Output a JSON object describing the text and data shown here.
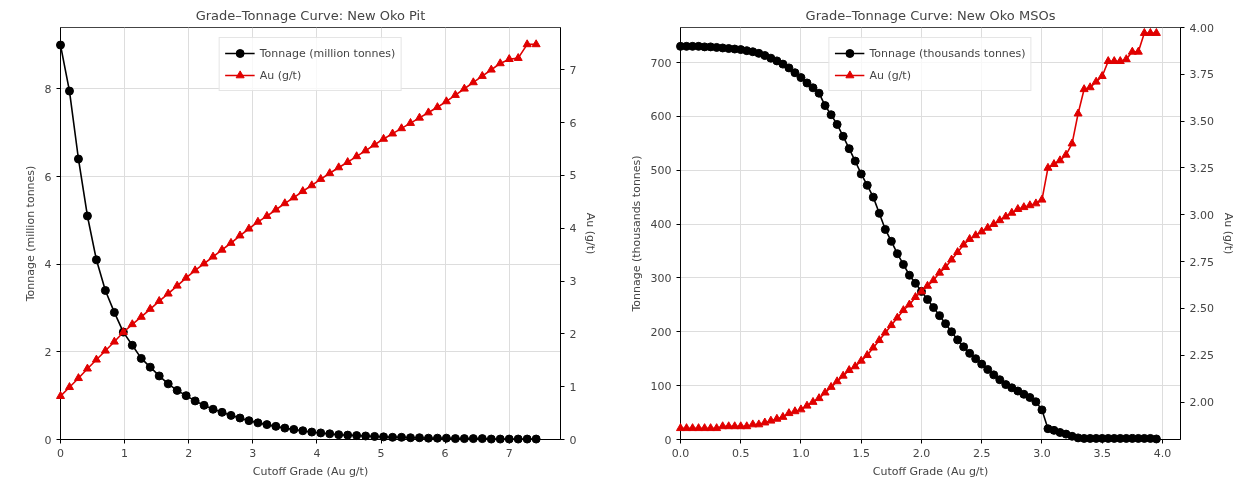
{
  "chart_data": [
    {
      "type": "line",
      "title": "Grade–Tonnage Curve: New Oko Pit",
      "xlabel": "Cutoff Grade (Au g/t)",
      "ylabel": "Tonnage (million tonnes)",
      "y2label": "Au (g/t)",
      "x": [
        0,
        0.14,
        0.28,
        0.42,
        0.56,
        0.7,
        0.84,
        0.98,
        1.12,
        1.26,
        1.4,
        1.54,
        1.68,
        1.82,
        1.96,
        2.1,
        2.24,
        2.38,
        2.52,
        2.66,
        2.8,
        2.94,
        3.08,
        3.22,
        3.36,
        3.5,
        3.64,
        3.78,
        3.92,
        4.06,
        4.2,
        4.34,
        4.48,
        4.62,
        4.76,
        4.9,
        5.04,
        5.18,
        5.32,
        5.46,
        5.6,
        5.74,
        5.88,
        6.02,
        6.16,
        6.3,
        6.44,
        6.58,
        6.72,
        6.86,
        7.0,
        7.14,
        7.28,
        7.42
      ],
      "series": [
        {
          "name": "Tonnage (million tonnes)",
          "color": "#000000",
          "marker": "circle",
          "values": [
            9.0,
            7.95,
            6.4,
            5.1,
            4.1,
            3.4,
            2.9,
            2.45,
            2.15,
            1.85,
            1.65,
            1.45,
            1.27,
            1.12,
            1.0,
            0.88,
            0.78,
            0.69,
            0.62,
            0.55,
            0.49,
            0.43,
            0.38,
            0.34,
            0.3,
            0.26,
            0.23,
            0.2,
            0.17,
            0.15,
            0.13,
            0.11,
            0.1,
            0.09,
            0.08,
            0.07,
            0.06,
            0.05,
            0.05,
            0.04,
            0.04,
            0.03,
            0.03,
            0.03,
            0.02,
            0.02,
            0.02,
            0.02,
            0.01,
            0.01,
            0.01,
            0.01,
            0.01,
            0.01
          ]
        },
        {
          "name": "Au (g/t)",
          "color": "#e00000",
          "marker": "triangle",
          "axis": "y2",
          "values": [
            0.82,
            0.99,
            1.16,
            1.34,
            1.51,
            1.68,
            1.85,
            2.03,
            2.18,
            2.32,
            2.47,
            2.62,
            2.76,
            2.91,
            3.06,
            3.2,
            3.33,
            3.46,
            3.59,
            3.72,
            3.86,
            3.99,
            4.12,
            4.23,
            4.35,
            4.47,
            4.58,
            4.7,
            4.81,
            4.93,
            5.04,
            5.15,
            5.25,
            5.36,
            5.47,
            5.58,
            5.69,
            5.79,
            5.89,
            5.99,
            6.09,
            6.19,
            6.29,
            6.4,
            6.52,
            6.64,
            6.76,
            6.88,
            7.0,
            7.12,
            7.2,
            7.22,
            7.48,
            7.48
          ]
        }
      ],
      "xlim": [
        0,
        7.8
      ],
      "xticks": [
        0,
        1,
        2,
        3,
        4,
        5,
        6,
        7
      ],
      "ylim": [
        0,
        9.4
      ],
      "yticks": [
        0,
        2,
        4,
        6,
        8
      ],
      "y2lim": [
        0,
        7.8
      ],
      "y2ticks": [
        0,
        1,
        2,
        3,
        4,
        5,
        6,
        7
      ],
      "grid": true,
      "legend": "top",
      "line_style": "solid"
    },
    {
      "type": "line",
      "title": "Grade–Tonnage Curve: New Oko MSOs",
      "xlabel": "Cutoff Grade (Au g/t)",
      "ylabel": "Tonnage (thousands tonnes)",
      "y2label": "Au (g/t)",
      "x": [
        0,
        0.05,
        0.1,
        0.15,
        0.2,
        0.25,
        0.3,
        0.35,
        0.4,
        0.45,
        0.5,
        0.55,
        0.6,
        0.65,
        0.7,
        0.75,
        0.8,
        0.85,
        0.9,
        0.95,
        1.0,
        1.05,
        1.1,
        1.15,
        1.2,
        1.25,
        1.3,
        1.35,
        1.4,
        1.45,
        1.5,
        1.55,
        1.6,
        1.65,
        1.7,
        1.75,
        1.8,
        1.85,
        1.9,
        1.95,
        2.0,
        2.05,
        2.1,
        2.15,
        2.2,
        2.25,
        2.3,
        2.35,
        2.4,
        2.45,
        2.5,
        2.55,
        2.6,
        2.65,
        2.7,
        2.75,
        2.8,
        2.85,
        2.9,
        2.95,
        3.0,
        3.05,
        3.1,
        3.15,
        3.2,
        3.25,
        3.3,
        3.35,
        3.4,
        3.45,
        3.5,
        3.55,
        3.6,
        3.65,
        3.7,
        3.75,
        3.8,
        3.85,
        3.9,
        3.95
      ],
      "series": [
        {
          "name": "Tonnage (thousands tonnes)",
          "color": "#000000",
          "marker": "circle",
          "values": [
            730,
            730,
            730,
            730,
            729,
            729,
            728,
            727,
            726,
            725,
            724,
            722,
            720,
            717,
            713,
            708,
            703,
            697,
            690,
            681,
            672,
            662,
            653,
            643,
            620,
            603,
            585,
            563,
            540,
            517,
            493,
            472,
            450,
            420,
            390,
            368,
            345,
            325,
            305,
            290,
            275,
            260,
            245,
            230,
            215,
            200,
            185,
            172,
            160,
            150,
            140,
            130,
            120,
            111,
            102,
            96,
            90,
            84,
            78,
            70,
            55,
            20,
            17,
            13,
            10,
            6,
            3,
            2,
            2,
            2,
            2,
            2,
            2,
            2,
            2,
            2,
            2,
            2,
            2,
            1
          ]
        },
        {
          "name": "Au (g/t)",
          "color": "#e00000",
          "marker": "triangle",
          "axis": "y2",
          "values": [
            1.86,
            1.86,
            1.86,
            1.86,
            1.86,
            1.86,
            1.86,
            1.87,
            1.87,
            1.87,
            1.87,
            1.87,
            1.88,
            1.88,
            1.89,
            1.9,
            1.91,
            1.92,
            1.94,
            1.95,
            1.96,
            1.98,
            2.0,
            2.02,
            2.05,
            2.08,
            2.11,
            2.14,
            2.17,
            2.19,
            2.22,
            2.25,
            2.29,
            2.33,
            2.37,
            2.41,
            2.45,
            2.49,
            2.52,
            2.56,
            2.59,
            2.62,
            2.65,
            2.69,
            2.72,
            2.76,
            2.8,
            2.84,
            2.87,
            2.89,
            2.91,
            2.93,
            2.95,
            2.97,
            2.99,
            3.01,
            3.03,
            3.04,
            3.05,
            3.06,
            3.08,
            3.25,
            3.27,
            3.29,
            3.32,
            3.38,
            3.54,
            3.67,
            3.68,
            3.71,
            3.74,
            3.82,
            3.82,
            3.82,
            3.83,
            3.87,
            3.87,
            3.97,
            3.97,
            3.97
          ]
        }
      ],
      "xlim": [
        0,
        4.15
      ],
      "xticks": [
        {
          "value": 0,
          "label": "0.0"
        },
        {
          "value": 0.5,
          "label": "0.5"
        },
        {
          "value": 1,
          "label": "1.0"
        },
        {
          "value": 1.5,
          "label": "1.5"
        },
        {
          "value": 2,
          "label": "2.0"
        },
        {
          "value": 2.5,
          "label": "2.5"
        },
        {
          "value": 3,
          "label": "3.0"
        },
        {
          "value": 3.5,
          "label": "3.5"
        },
        {
          "value": 4,
          "label": "4.0"
        }
      ],
      "ylim": [
        0,
        765
      ],
      "yticks": [
        0,
        100,
        200,
        300,
        400,
        500,
        600,
        700
      ],
      "y2lim": [
        1.8,
        4.0
      ],
      "y2ticks": [
        {
          "value": 2,
          "label": "2.00"
        },
        {
          "value": 2.25,
          "label": "2.25"
        },
        {
          "value": 2.5,
          "label": "2.50"
        },
        {
          "value": 2.75,
          "label": "2.75"
        },
        {
          "value": 3,
          "label": "3.00"
        },
        {
          "value": 3.25,
          "label": "3.25"
        },
        {
          "value": 3.5,
          "label": "3.50"
        },
        {
          "value": 3.75,
          "label": "3.75"
        },
        {
          "value": 4,
          "label": "4.00"
        }
      ],
      "grid": true,
      "legend": "top",
      "line_style": "solid"
    }
  ]
}
